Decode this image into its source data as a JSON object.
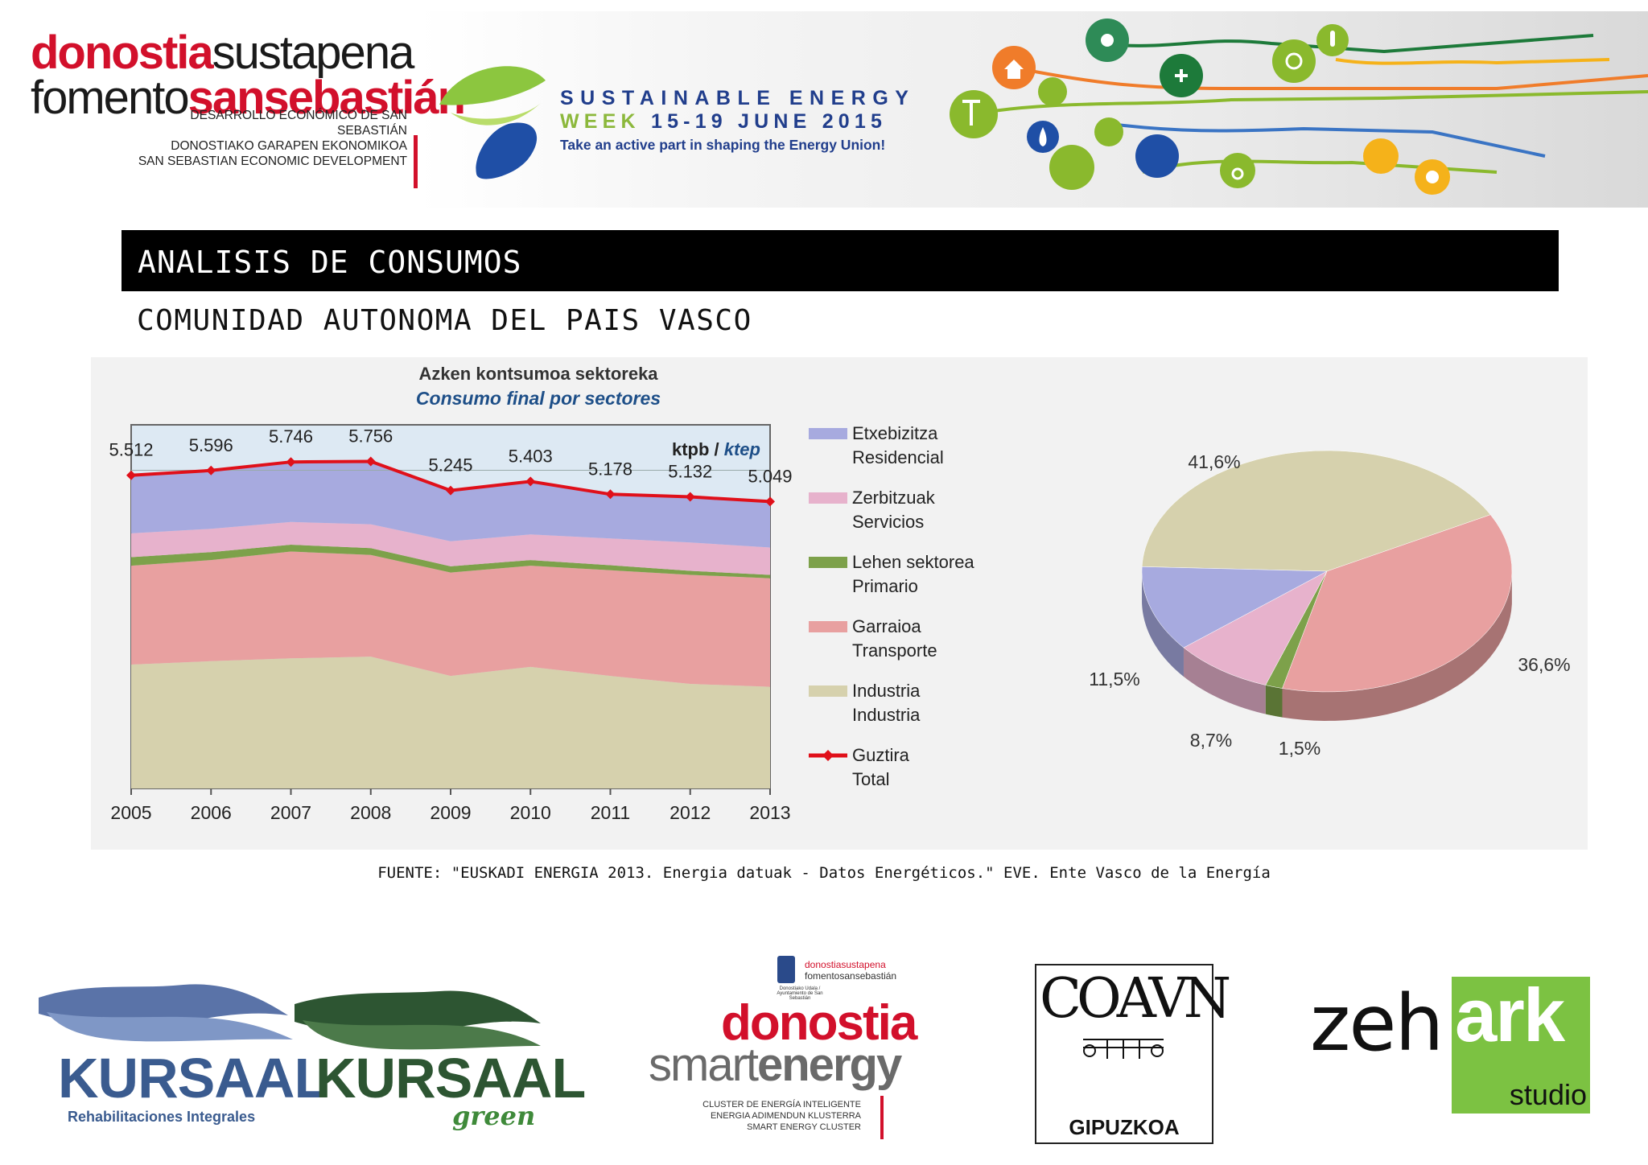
{
  "header": {
    "org_brand": {
      "line1_red": "donostia",
      "line1_dark": "sustapena",
      "line2_dark": "fomento",
      "line2_red": "sansebastián"
    },
    "org_subtitle": [
      "DESARROLLO ECONÓMICO DE SAN SEBASTIÁN",
      "DONOSTIAKO GARAPEN EKONOMIKOA",
      "SAN SEBASTIAN ECONOMIC DEVELOPMENT"
    ],
    "event_title": "SUSTAINABLE ENERGY",
    "event_week": "WEEK",
    "event_dates": "15-19 JUNE 2015",
    "event_tagline": "Take an active part in shaping the Energy Union!",
    "icon_names": [
      "wind-turbine-icon",
      "house-icon",
      "car-icon",
      "sun-icon",
      "snowflake-icon",
      "water-drop-icon",
      "cloud-icon",
      "leaf-house-icon",
      "fuel-pump-icon",
      "bicycle-icon",
      "thermometer-icon",
      "compass-icon",
      "hairdryer-icon",
      "bulb-icon"
    ]
  },
  "section": {
    "title": "ANALISIS DE CONSUMOS",
    "subtitle": "COMUNIDAD AUTONOMA DEL PAIS VASCO"
  },
  "chart_data": [
    {
      "type": "area",
      "title": "Azken kontsumoa sektoreka",
      "subtitle": "Consumo final por sectores",
      "unit_label": {
        "eu": "ktpb",
        "sep": " / ",
        "es": "ktep"
      },
      "x": [
        "2005",
        "2006",
        "2007",
        "2008",
        "2009",
        "2010",
        "2011",
        "2012",
        "2013"
      ],
      "ylim": [
        0,
        6400
      ],
      "stacked": true,
      "series": [
        {
          "name": "Industria\nIndustria",
          "color": "#d6d1ad",
          "values": [
            2180,
            2240,
            2290,
            2320,
            1980,
            2140,
            1980,
            1840,
            1790
          ]
        },
        {
          "name": "Garraioa\nTransporte",
          "color": "#e8a0a0",
          "values": [
            1740,
            1780,
            1880,
            1790,
            1820,
            1780,
            1860,
            1920,
            1910
          ]
        },
        {
          "name": "Lehen sektorea\nPrimario",
          "color": "#7da14a",
          "values": [
            150,
            140,
            120,
            120,
            110,
            100,
            90,
            70,
            60
          ]
        },
        {
          "name": "Zerbitzuak\nServicios",
          "color": "#e7b2cc",
          "values": [
            420,
            410,
            400,
            420,
            440,
            450,
            470,
            500,
            480
          ]
        },
        {
          "name": "Etxebizitza\nResidencial",
          "color": "#a7aadf",
          "values": [
            1022,
            1026,
            1056,
            1106,
            895,
            933,
            778,
            802,
            809
          ]
        }
      ],
      "total": {
        "name": "Guztira\nTotal",
        "color": "#e0101a",
        "values": [
          5512,
          5596,
          5746,
          5756,
          5245,
          5403,
          5178,
          5132,
          5049
        ],
        "labels": [
          "5.512",
          "5.596",
          "5.746",
          "5.756",
          "5.245",
          "5.403",
          "5.178",
          "5.132",
          "5.049"
        ]
      },
      "legend_position": "right",
      "background": "#dde9f3"
    },
    {
      "type": "pie",
      "style": "3d",
      "slices": [
        {
          "label": "41,6%",
          "value": 41.6,
          "color": "#d6d1ad"
        },
        {
          "label": "36,6%",
          "value": 36.6,
          "color": "#e8a0a0"
        },
        {
          "label": "1,5%",
          "value": 1.5,
          "color": "#7da14a"
        },
        {
          "label": "8,7%",
          "value": 8.7,
          "color": "#e7b2cc"
        },
        {
          "label": "11,5%",
          "value": 11.5,
          "color": "#a7aadf"
        }
      ]
    }
  ],
  "source": "FUENTE: \"EUSKADI ENERGIA 2013. Energia datuak - Datos Energéticos.\" EVE. Ente Vasco de la Energía",
  "footer": {
    "kursaal": {
      "name": "KURSAAL",
      "sub": "Rehabilitaciones Integrales"
    },
    "kursaal_green": {
      "name": "KURSAAL",
      "sub": "green"
    },
    "dse": {
      "head1": "donostiasustapena",
      "head2": "fomentosansebastián",
      "crest_caption": "Donostiako Udala / Ayuntamiento de San Sebastián",
      "word1": "donostia",
      "word2a": "smart",
      "word2b": "energy",
      "lines": [
        "CLUSTER DE ENERGÍA INTELIGENTE",
        "ENERGIA ADIMENDUN KLUSTERRA",
        "SMART ENERGY CLUSTER"
      ]
    },
    "coavn": {
      "name": "COAVN",
      "region": "GIPUZKOA"
    },
    "zehark": {
      "a": "zeh",
      "b": "ark",
      "c": "studio"
    }
  }
}
